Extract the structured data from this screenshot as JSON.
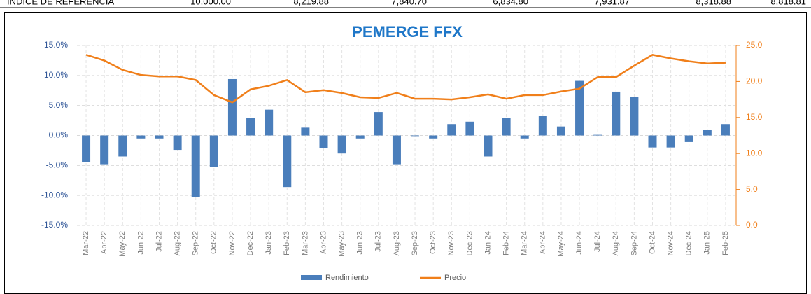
{
  "header_row": {
    "label": "INDICE DE REFERENCIA",
    "values": [
      "10,000.00",
      "8,219.88",
      "7,840.70",
      "6,834.80",
      "7,931.87",
      "8,318.88",
      "8,818.81"
    ]
  },
  "chart_data": {
    "type": "bar",
    "title": "PEMERGE FFX",
    "categories": [
      "Mar-22",
      "Apr-22",
      "May-22",
      "Jun-22",
      "Jul-22",
      "Aug-22",
      "Sep-22",
      "Oct-22",
      "Nov-22",
      "Dec-22",
      "Jan-23",
      "Feb-23",
      "Mar-23",
      "Apr-23",
      "May-23",
      "Jun-23",
      "Jul-23",
      "Aug-23",
      "Sep-23",
      "Oct-23",
      "Nov-23",
      "Dec-23",
      "Jan-24",
      "Feb-24",
      "Mar-24",
      "Apr-24",
      "May-24",
      "Jun-24",
      "Jul-24",
      "Aug-24",
      "Sep-24",
      "Oct-24",
      "Nov-24",
      "Dec-24",
      "Jan-25",
      "Feb-25"
    ],
    "series": [
      {
        "name": "Rendimiento",
        "type": "bar",
        "color": "#4a7ebb",
        "values": [
          -4.4,
          -4.8,
          -3.5,
          -0.5,
          -0.5,
          -2.4,
          -10.3,
          -5.2,
          9.4,
          2.9,
          4.3,
          -8.6,
          1.3,
          -2.1,
          -3.0,
          -0.5,
          3.9,
          -4.8,
          -0.1,
          -0.5,
          1.9,
          2.3,
          -3.5,
          2.9,
          -0.5,
          3.3,
          1.5,
          9.1,
          0.1,
          7.3,
          6.4,
          -2.0,
          -2.0,
          -1.1,
          0.9,
          1.9
        ]
      },
      {
        "name": "Precio",
        "type": "line",
        "axis": "y2",
        "color": "#f07f1a",
        "values": [
          23.7,
          22.9,
          21.6,
          20.9,
          20.7,
          20.7,
          20.2,
          18.1,
          17.1,
          18.9,
          19.4,
          20.2,
          18.5,
          18.8,
          18.4,
          17.8,
          17.7,
          18.4,
          17.6,
          17.6,
          17.5,
          17.8,
          18.2,
          17.6,
          18.1,
          18.1,
          18.6,
          19.0,
          20.6,
          20.6,
          22.2,
          23.7,
          23.2,
          22.8,
          22.5,
          22.6
        ]
      }
    ],
    "ylim": [
      -15,
      15
    ],
    "yticks": [
      {
        "value": -15,
        "label": "-15.0%"
      },
      {
        "value": -10,
        "label": "-10.0%"
      },
      {
        "value": -5,
        "label": "-5.0%"
      },
      {
        "value": 0,
        "label": "0.0%"
      },
      {
        "value": 5,
        "label": "5.0%"
      },
      {
        "value": 10,
        "label": "10.0%"
      },
      {
        "value": 15,
        "label": "15.0%"
      }
    ],
    "y2lim": [
      0,
      25
    ],
    "y2ticks": [
      {
        "value": 0,
        "label": "0.0"
      },
      {
        "value": 5,
        "label": "5.0"
      },
      {
        "value": 10,
        "label": "10.0"
      },
      {
        "value": 15,
        "label": "15.0"
      },
      {
        "value": 20,
        "label": "20.0"
      },
      {
        "value": 25,
        "label": "25.0"
      }
    ],
    "grid": true,
    "legend": "bottom"
  }
}
